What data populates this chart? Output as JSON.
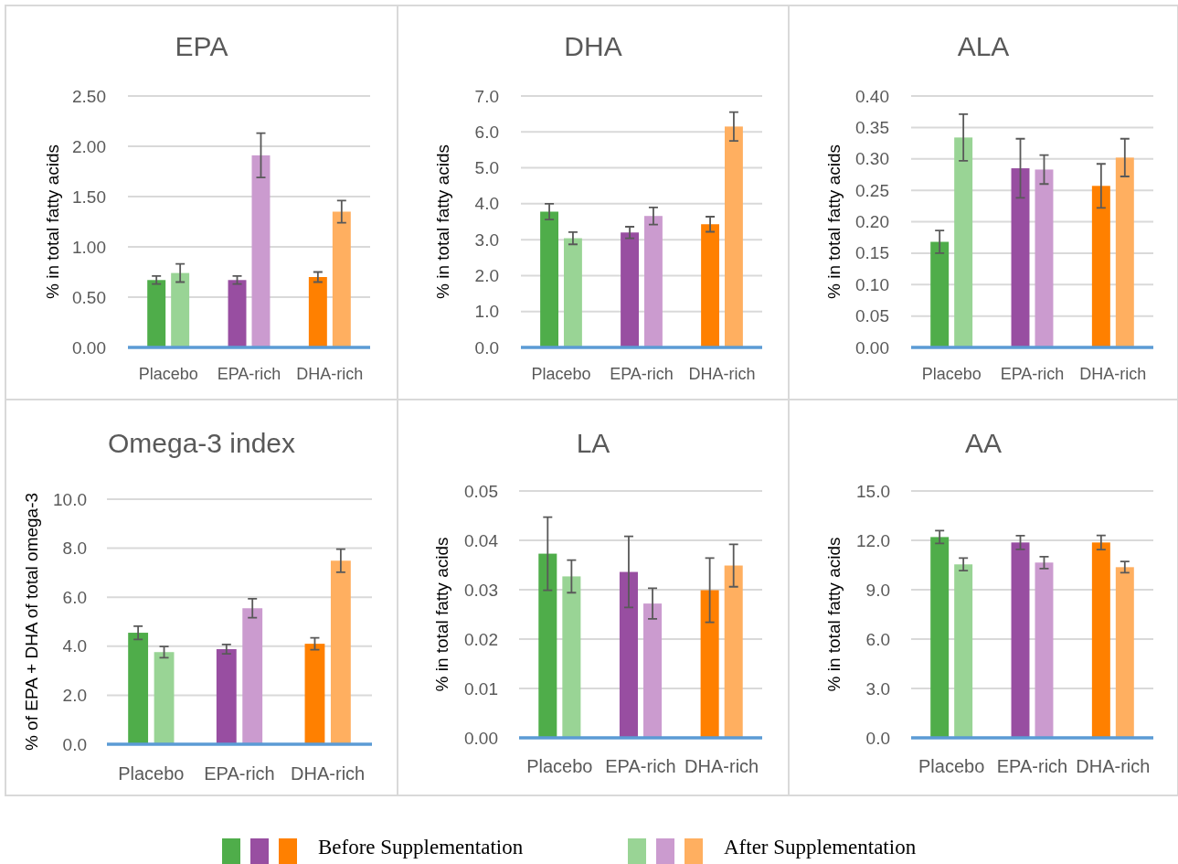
{
  "chart_data": [
    {
      "type": "bar",
      "title": "EPA",
      "ylabel": "% in total fatty acids",
      "categories": [
        "Placebo",
        "EPA-rich",
        "DHA-rich"
      ],
      "series": [
        {
          "name": "Before Supplementation",
          "colors": [
            "#4fad4a",
            "#984ea1",
            "#ff8000"
          ],
          "values": [
            0.67,
            0.67,
            0.7
          ],
          "errors": [
            0.04,
            0.04,
            0.05
          ]
        },
        {
          "name": "After Supplementation",
          "colors": [
            "#99d495",
            "#cb9bcf",
            "#ffaf60"
          ],
          "values": [
            0.74,
            1.91,
            1.35
          ],
          "errors": [
            0.09,
            0.22,
            0.11
          ]
        }
      ],
      "ylim": [
        0,
        2.5
      ],
      "yticks": [
        {
          "value": 0,
          "label": "0.00"
        },
        {
          "value": 0.5,
          "label": "0.50"
        },
        {
          "value": 1,
          "label": "1.00"
        },
        {
          "value": 1.5,
          "label": "1.50"
        },
        {
          "value": 2,
          "label": "2.00"
        },
        {
          "value": 2.5,
          "label": "2.50"
        }
      ],
      "grid": "y",
      "legend": "bottom"
    },
    {
      "type": "bar",
      "title": "DHA",
      "ylabel": "% in total fatty acids",
      "categories": [
        "Placebo",
        "EPA-rich",
        "DHA-rich"
      ],
      "series": [
        {
          "colors": [
            "#4fad4a",
            "#984ea1",
            "#ff8000"
          ],
          "values": [
            3.78,
            3.2,
            3.43
          ],
          "errors": [
            0.22,
            0.16,
            0.21
          ]
        },
        {
          "colors": [
            "#99d495",
            "#cb9bcf",
            "#ffaf60"
          ],
          "values": [
            3.04,
            3.66,
            6.15
          ],
          "errors": [
            0.17,
            0.24,
            0.4
          ]
        }
      ],
      "ylim": [
        0,
        7
      ],
      "yticks": [
        {
          "value": 0,
          "label": "0.0"
        },
        {
          "value": 1,
          "label": "1.0"
        },
        {
          "value": 2,
          "label": "2.0"
        },
        {
          "value": 3,
          "label": "3.0"
        },
        {
          "value": 4,
          "label": "4.0"
        },
        {
          "value": 5,
          "label": "5.0"
        },
        {
          "value": 6,
          "label": "6.0"
        },
        {
          "value": 7,
          "label": "7.0"
        }
      ],
      "grid": "y"
    },
    {
      "type": "bar",
      "title": "ALA",
      "ylabel": "% in total fatty acids",
      "categories": [
        "Placebo",
        "EPA-rich",
        "DHA-rich"
      ],
      "series": [
        {
          "colors": [
            "#4fad4a",
            "#984ea1",
            "#ff8000"
          ],
          "values": [
            0.168,
            0.285,
            0.257
          ],
          "errors": [
            0.018,
            0.047,
            0.035
          ]
        },
        {
          "colors": [
            "#99d495",
            "#cb9bcf",
            "#ffaf60"
          ],
          "values": [
            0.334,
            0.283,
            0.302
          ],
          "errors": [
            0.037,
            0.023,
            0.03
          ]
        }
      ],
      "ylim": [
        0,
        0.4
      ],
      "yticks": [
        {
          "value": 0,
          "label": "0.00"
        },
        {
          "value": 0.05,
          "label": "0.05"
        },
        {
          "value": 0.1,
          "label": "0.10"
        },
        {
          "value": 0.15,
          "label": "0.15"
        },
        {
          "value": 0.2,
          "label": "0.20"
        },
        {
          "value": 0.25,
          "label": "0.25"
        },
        {
          "value": 0.3,
          "label": "0.30"
        },
        {
          "value": 0.35,
          "label": "0.35"
        },
        {
          "value": 0.4,
          "label": "0.40"
        }
      ],
      "grid": "y"
    },
    {
      "type": "bar",
      "title": "Omega-3 index",
      "ylabel": "% of EPA + DHA of total omega-3",
      "categories": [
        "Placebo",
        "EPA-rich",
        "DHA-rich"
      ],
      "series": [
        {
          "colors": [
            "#4fad4a",
            "#984ea1",
            "#ff8000"
          ],
          "values": [
            4.55,
            3.88,
            4.1
          ],
          "errors": [
            0.27,
            0.19,
            0.24
          ]
        },
        {
          "colors": [
            "#99d495",
            "#cb9bcf",
            "#ffaf60"
          ],
          "values": [
            3.76,
            5.55,
            7.49
          ],
          "errors": [
            0.23,
            0.39,
            0.47
          ]
        }
      ],
      "ylim": [
        0,
        10
      ],
      "yticks": [
        {
          "value": 0,
          "label": "0.0"
        },
        {
          "value": 2,
          "label": "2.0"
        },
        {
          "value": 4,
          "label": "4.0"
        },
        {
          "value": 6,
          "label": "6.0"
        },
        {
          "value": 8,
          "label": "8.0"
        },
        {
          "value": 10,
          "label": "10.0"
        }
      ],
      "grid": "y"
    },
    {
      "type": "bar",
      "title": "LA",
      "ylabel": "% in total fatty acids",
      "categories": [
        "Placebo",
        "EPA-rich",
        "DHA-rich"
      ],
      "series": [
        {
          "colors": [
            "#4fad4a",
            "#984ea1",
            "#ff8000"
          ],
          "values": [
            0.0373,
            0.0336,
            0.0299
          ],
          "errors": [
            0.0074,
            0.0072,
            0.0065
          ]
        },
        {
          "colors": [
            "#99d495",
            "#cb9bcf",
            "#ffaf60"
          ],
          "values": [
            0.0327,
            0.0272,
            0.0349
          ],
          "errors": [
            0.0033,
            0.0031,
            0.0043
          ]
        }
      ],
      "ylim": [
        0,
        0.05
      ],
      "yticks": [
        {
          "value": 0,
          "label": "0.00"
        },
        {
          "value": 0.01,
          "label": "0.01"
        },
        {
          "value": 0.02,
          "label": "0.02"
        },
        {
          "value": 0.03,
          "label": "0.03"
        },
        {
          "value": 0.04,
          "label": "0.04"
        },
        {
          "value": 0.05,
          "label": "0.05"
        }
      ],
      "grid": "y"
    },
    {
      "type": "bar",
      "title": "AA",
      "ylabel": "% in total fatty acids",
      "categories": [
        "Placebo",
        "EPA-rich",
        "DHA-rich"
      ],
      "series": [
        {
          "colors": [
            "#4fad4a",
            "#984ea1",
            "#ff8000"
          ],
          "values": [
            12.2,
            11.87,
            11.87
          ],
          "errors": [
            0.39,
            0.42,
            0.43
          ]
        },
        {
          "colors": [
            "#99d495",
            "#cb9bcf",
            "#ffaf60"
          ],
          "values": [
            10.54,
            10.65,
            10.37
          ],
          "errors": [
            0.38,
            0.36,
            0.34
          ]
        }
      ],
      "ylim": [
        0,
        15
      ],
      "yticks": [
        {
          "value": 0,
          "label": "0.0"
        },
        {
          "value": 3,
          "label": "3.0"
        },
        {
          "value": 6,
          "label": "6.0"
        },
        {
          "value": 9,
          "label": "9.0"
        },
        {
          "value": 12,
          "label": "12.0"
        },
        {
          "value": 15,
          "label": "15.0"
        }
      ],
      "grid": "y"
    }
  ]
}
